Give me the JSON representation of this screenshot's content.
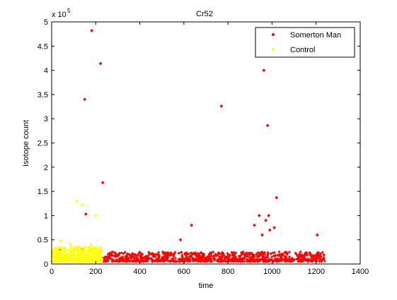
{
  "chart_data": {
    "type": "scatter",
    "title": "Cr52",
    "xlabel": "time",
    "ylabel": "Isotope count",
    "y_exponent_label": "x 10",
    "y_exponent": "5",
    "xlim": [
      0,
      1400
    ],
    "ylim": [
      0,
      5
    ],
    "y_units_multiplier": 100000,
    "x_ticks": [
      "0",
      "200",
      "400",
      "600",
      "800",
      "1000",
      "1200",
      "1400"
    ],
    "y_ticks": [
      "0",
      "0.5",
      "1",
      "1.5",
      "2",
      "2.5",
      "3",
      "3.5",
      "4",
      "4.5",
      "5"
    ],
    "grid": false,
    "legend_position": "top-right",
    "series": [
      {
        "name": "Somerton Man",
        "color": "#ff0000",
        "x_range": [
          230,
          1240
        ],
        "baseline_band": [
          0.05,
          0.25
        ],
        "outliers": [
          {
            "x": 182,
            "y": 4.82
          },
          {
            "x": 222,
            "y": 4.14
          },
          {
            "x": 150,
            "y": 3.4
          },
          {
            "x": 232,
            "y": 1.68
          },
          {
            "x": 155,
            "y": 1.03
          },
          {
            "x": 140,
            "y": 0.3
          },
          {
            "x": 40,
            "y": 0.3
          },
          {
            "x": 585,
            "y": 0.5
          },
          {
            "x": 635,
            "y": 0.8
          },
          {
            "x": 770,
            "y": 3.26
          },
          {
            "x": 920,
            "y": 0.8
          },
          {
            "x": 942,
            "y": 1.0
          },
          {
            "x": 955,
            "y": 0.6
          },
          {
            "x": 963,
            "y": 4.0
          },
          {
            "x": 972,
            "y": 0.9
          },
          {
            "x": 980,
            "y": 2.86
          },
          {
            "x": 985,
            "y": 1.0
          },
          {
            "x": 990,
            "y": 0.7
          },
          {
            "x": 1010,
            "y": 0.75
          },
          {
            "x": 1020,
            "y": 1.37
          },
          {
            "x": 1205,
            "y": 0.6
          }
        ]
      },
      {
        "name": "Control",
        "color": "#ffff00",
        "x_range": [
          0,
          230
        ],
        "baseline_band": [
          0.05,
          0.35
        ],
        "outliers": [
          {
            "x": 115,
            "y": 1.3
          },
          {
            "x": 140,
            "y": 1.22
          },
          {
            "x": 200,
            "y": 1.0
          },
          {
            "x": 40,
            "y": 0.48
          },
          {
            "x": 85,
            "y": 0.4
          },
          {
            "x": 120,
            "y": 0.35
          },
          {
            "x": 180,
            "y": 0.4
          }
        ]
      }
    ]
  }
}
